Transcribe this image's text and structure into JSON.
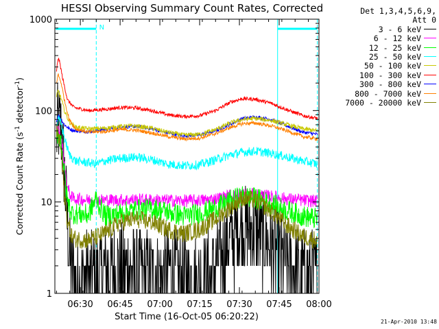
{
  "chart_data": {
    "type": "line",
    "title": "HESSI Observing Summary Count Rates, Corrected",
    "xlabel": "Start Time (16-Oct-05 06:20:22)",
    "ylabel_main": "Corrected Count Rate (s",
    "ylabel_sup1": "-1",
    "ylabel_mid": " detector",
    "ylabel_sup2": "-1",
    "ylabel_end": ")",
    "yscale": "log",
    "ylim": [
      1,
      1000
    ],
    "xlim": [
      6.34,
      8.0
    ],
    "y_tick_labels": [
      "1",
      "10",
      "100",
      "1000"
    ],
    "x_ticks": [
      {
        "label": "06:30",
        "x": 6.5
      },
      {
        "label": "06:45",
        "x": 6.75
      },
      {
        "label": "07:00",
        "x": 7.0
      },
      {
        "label": "07:15",
        "x": 7.25
      },
      {
        "label": "07:30",
        "x": 7.5
      },
      {
        "label": "07:45",
        "x": 7.75
      },
      {
        "label": "08:00",
        "x": 8.0
      }
    ],
    "night_intervals": [
      [
        6.345,
        6.6
      ],
      [
        7.74,
        7.99
      ]
    ],
    "vertical_lines": [
      6.6,
      7.74,
      7.99
    ],
    "night_marker": {
      "label": "N",
      "x": 6.61
    },
    "legend_header": [
      "Det 1,3,4,5,6,9,",
      "Att 0"
    ],
    "series": [
      {
        "name": "3 - 6 keV",
        "color": "#000000",
        "points": [
          [
            6.35,
            50
          ],
          [
            6.36,
            72
          ],
          [
            6.38,
            60
          ],
          [
            6.4,
            20
          ],
          [
            6.42,
            5
          ],
          [
            6.44,
            2
          ],
          [
            6.47,
            1.5
          ],
          [
            6.55,
            1.6
          ],
          [
            6.65,
            1.7
          ],
          [
            6.75,
            2
          ],
          [
            6.85,
            1.8
          ],
          [
            6.95,
            1.6
          ],
          [
            7.05,
            1.7
          ],
          [
            7.15,
            1.5
          ],
          [
            7.25,
            1.5
          ],
          [
            7.33,
            1.6
          ],
          [
            7.4,
            3
          ],
          [
            7.45,
            4
          ],
          [
            7.5,
            5
          ],
          [
            7.55,
            5.2
          ],
          [
            7.6,
            5
          ],
          [
            7.65,
            4
          ],
          [
            7.72,
            3
          ],
          [
            7.8,
            2
          ],
          [
            7.88,
            1.6
          ],
          [
            7.99,
            1.5
          ]
        ],
        "noise": 0.5
      },
      {
        "name": "6 - 12 keV",
        "color": "#ff00ff",
        "points": [
          [
            6.35,
            55
          ],
          [
            6.36,
            62
          ],
          [
            6.38,
            50
          ],
          [
            6.4,
            25
          ],
          [
            6.42,
            14
          ],
          [
            6.45,
            11
          ],
          [
            6.55,
            10.5
          ],
          [
            6.65,
            10.5
          ],
          [
            6.75,
            10.5
          ],
          [
            6.85,
            10.6
          ],
          [
            6.95,
            10.5
          ],
          [
            7.05,
            10.4
          ],
          [
            7.15,
            10.3
          ],
          [
            7.25,
            10.4
          ],
          [
            7.35,
            10.8
          ],
          [
            7.45,
            11.8
          ],
          [
            7.52,
            12.2
          ],
          [
            7.6,
            12
          ],
          [
            7.7,
            11.5
          ],
          [
            7.8,
            10.8
          ],
          [
            7.9,
            10.4
          ],
          [
            7.99,
            10.2
          ]
        ],
        "noise": 0.07
      },
      {
        "name": "12 - 25 keV",
        "color": "#00ff00",
        "points": [
          [
            6.35,
            50
          ],
          [
            6.36,
            58
          ],
          [
            6.38,
            45
          ],
          [
            6.4,
            20
          ],
          [
            6.42,
            10
          ],
          [
            6.45,
            7.5
          ],
          [
            6.55,
            7.2
          ],
          [
            6.6,
            11
          ],
          [
            6.62,
            9
          ],
          [
            6.66,
            7
          ],
          [
            6.75,
            7.5
          ],
          [
            6.85,
            8.2
          ],
          [
            6.95,
            8.5
          ],
          [
            7.05,
            7.8
          ],
          [
            7.15,
            7
          ],
          [
            7.25,
            7.5
          ],
          [
            7.35,
            8.5
          ],
          [
            7.45,
            10.5
          ],
          [
            7.52,
            11.5
          ],
          [
            7.6,
            11
          ],
          [
            7.7,
            9.5
          ],
          [
            7.8,
            8
          ],
          [
            7.9,
            7
          ],
          [
            7.99,
            6.5
          ]
        ],
        "noise": 0.12
      },
      {
        "name": "25 - 50 keV",
        "color": "#00ffff",
        "points": [
          [
            6.35,
            65
          ],
          [
            6.36,
            80
          ],
          [
            6.38,
            72
          ],
          [
            6.4,
            50
          ],
          [
            6.43,
            33
          ],
          [
            6.47,
            28
          ],
          [
            6.55,
            27
          ],
          [
            6.6,
            26
          ],
          [
            6.65,
            28
          ],
          [
            6.75,
            30
          ],
          [
            6.85,
            31
          ],
          [
            6.95,
            29
          ],
          [
            7.05,
            26
          ],
          [
            7.15,
            25
          ],
          [
            7.25,
            25.5
          ],
          [
            7.35,
            29
          ],
          [
            7.45,
            33
          ],
          [
            7.52,
            35
          ],
          [
            7.6,
            36
          ],
          [
            7.7,
            34
          ],
          [
            7.8,
            31
          ],
          [
            7.9,
            28
          ],
          [
            7.99,
            26
          ]
        ],
        "noise": 0.05
      },
      {
        "name": "50 - 100 keV",
        "color": "#c8c800",
        "points": [
          [
            6.35,
            140
          ],
          [
            6.36,
            165
          ],
          [
            6.38,
            135
          ],
          [
            6.4,
            100
          ],
          [
            6.43,
            75
          ],
          [
            6.47,
            66
          ],
          [
            6.55,
            63
          ],
          [
            6.65,
            64
          ],
          [
            6.75,
            67
          ],
          [
            6.85,
            68
          ],
          [
            6.95,
            64
          ],
          [
            7.05,
            58
          ],
          [
            7.15,
            54
          ],
          [
            7.25,
            55
          ],
          [
            7.35,
            62
          ],
          [
            7.45,
            74
          ],
          [
            7.52,
            80
          ],
          [
            7.6,
            82
          ],
          [
            7.7,
            78
          ],
          [
            7.8,
            70
          ],
          [
            7.9,
            63
          ],
          [
            7.99,
            60
          ]
        ],
        "noise": 0.025
      },
      {
        "name": "100 - 300 keV",
        "color": "#ff0000",
        "points": [
          [
            6.35,
            260
          ],
          [
            6.36,
            380
          ],
          [
            6.37,
            340
          ],
          [
            6.39,
            220
          ],
          [
            6.42,
            130
          ],
          [
            6.46,
            108
          ],
          [
            6.55,
            100
          ],
          [
            6.65,
            103
          ],
          [
            6.75,
            108
          ],
          [
            6.85,
            107
          ],
          [
            6.95,
            100
          ],
          [
            7.05,
            90
          ],
          [
            7.15,
            86
          ],
          [
            7.25,
            88
          ],
          [
            7.35,
            100
          ],
          [
            7.45,
            125
          ],
          [
            7.52,
            135
          ],
          [
            7.6,
            133
          ],
          [
            7.7,
            120
          ],
          [
            7.8,
            102
          ],
          [
            7.9,
            88
          ],
          [
            7.99,
            82
          ]
        ],
        "noise": 0.02
      },
      {
        "name": "300 - 800 keV",
        "color": "#0000ff",
        "points": [
          [
            6.35,
            75
          ],
          [
            6.36,
            90
          ],
          [
            6.38,
            80
          ],
          [
            6.4,
            70
          ],
          [
            6.43,
            63
          ],
          [
            6.47,
            60
          ],
          [
            6.55,
            59
          ],
          [
            6.65,
            62
          ],
          [
            6.75,
            66
          ],
          [
            6.85,
            67
          ],
          [
            6.95,
            63
          ],
          [
            7.05,
            57
          ],
          [
            7.15,
            53
          ],
          [
            7.25,
            54
          ],
          [
            7.35,
            60
          ],
          [
            7.45,
            72
          ],
          [
            7.52,
            82
          ],
          [
            7.6,
            85
          ],
          [
            7.7,
            80
          ],
          [
            7.8,
            68
          ],
          [
            7.9,
            58
          ],
          [
            7.99,
            55
          ]
        ],
        "noise": 0.02
      },
      {
        "name": "800 - 7000 keV",
        "color": "#ff8000",
        "points": [
          [
            6.35,
            200
          ],
          [
            6.36,
            250
          ],
          [
            6.38,
            200
          ],
          [
            6.4,
            130
          ],
          [
            6.43,
            80
          ],
          [
            6.47,
            63
          ],
          [
            6.55,
            58
          ],
          [
            6.65,
            59
          ],
          [
            6.75,
            62
          ],
          [
            6.85,
            61
          ],
          [
            6.95,
            57
          ],
          [
            7.05,
            52
          ],
          [
            7.15,
            49
          ],
          [
            7.25,
            50
          ],
          [
            7.35,
            56
          ],
          [
            7.45,
            66
          ],
          [
            7.52,
            72
          ],
          [
            7.6,
            73
          ],
          [
            7.7,
            68
          ],
          [
            7.8,
            60
          ],
          [
            7.9,
            52
          ],
          [
            7.99,
            49
          ]
        ],
        "noise": 0.02
      },
      {
        "name": "7000 - 20000 keV",
        "color": "#808000",
        "points": [
          [
            6.35,
            60
          ],
          [
            6.36,
            55
          ],
          [
            6.38,
            35
          ],
          [
            6.4,
            12
          ],
          [
            6.42,
            6
          ],
          [
            6.45,
            4
          ],
          [
            6.55,
            3.8
          ],
          [
            6.65,
            4.5
          ],
          [
            6.75,
            6
          ],
          [
            6.85,
            6.5
          ],
          [
            6.95,
            6
          ],
          [
            7.05,
            5
          ],
          [
            7.15,
            4.5
          ],
          [
            7.25,
            5
          ],
          [
            7.35,
            6.5
          ],
          [
            7.45,
            9
          ],
          [
            7.52,
            11
          ],
          [
            7.6,
            10.5
          ],
          [
            7.7,
            8
          ],
          [
            7.8,
            5.5
          ],
          [
            7.9,
            4.2
          ],
          [
            7.99,
            3.8
          ]
        ],
        "noise": 0.1
      }
    ]
  },
  "footer": {
    "stamp": "21-Apr-2010 13:48"
  }
}
